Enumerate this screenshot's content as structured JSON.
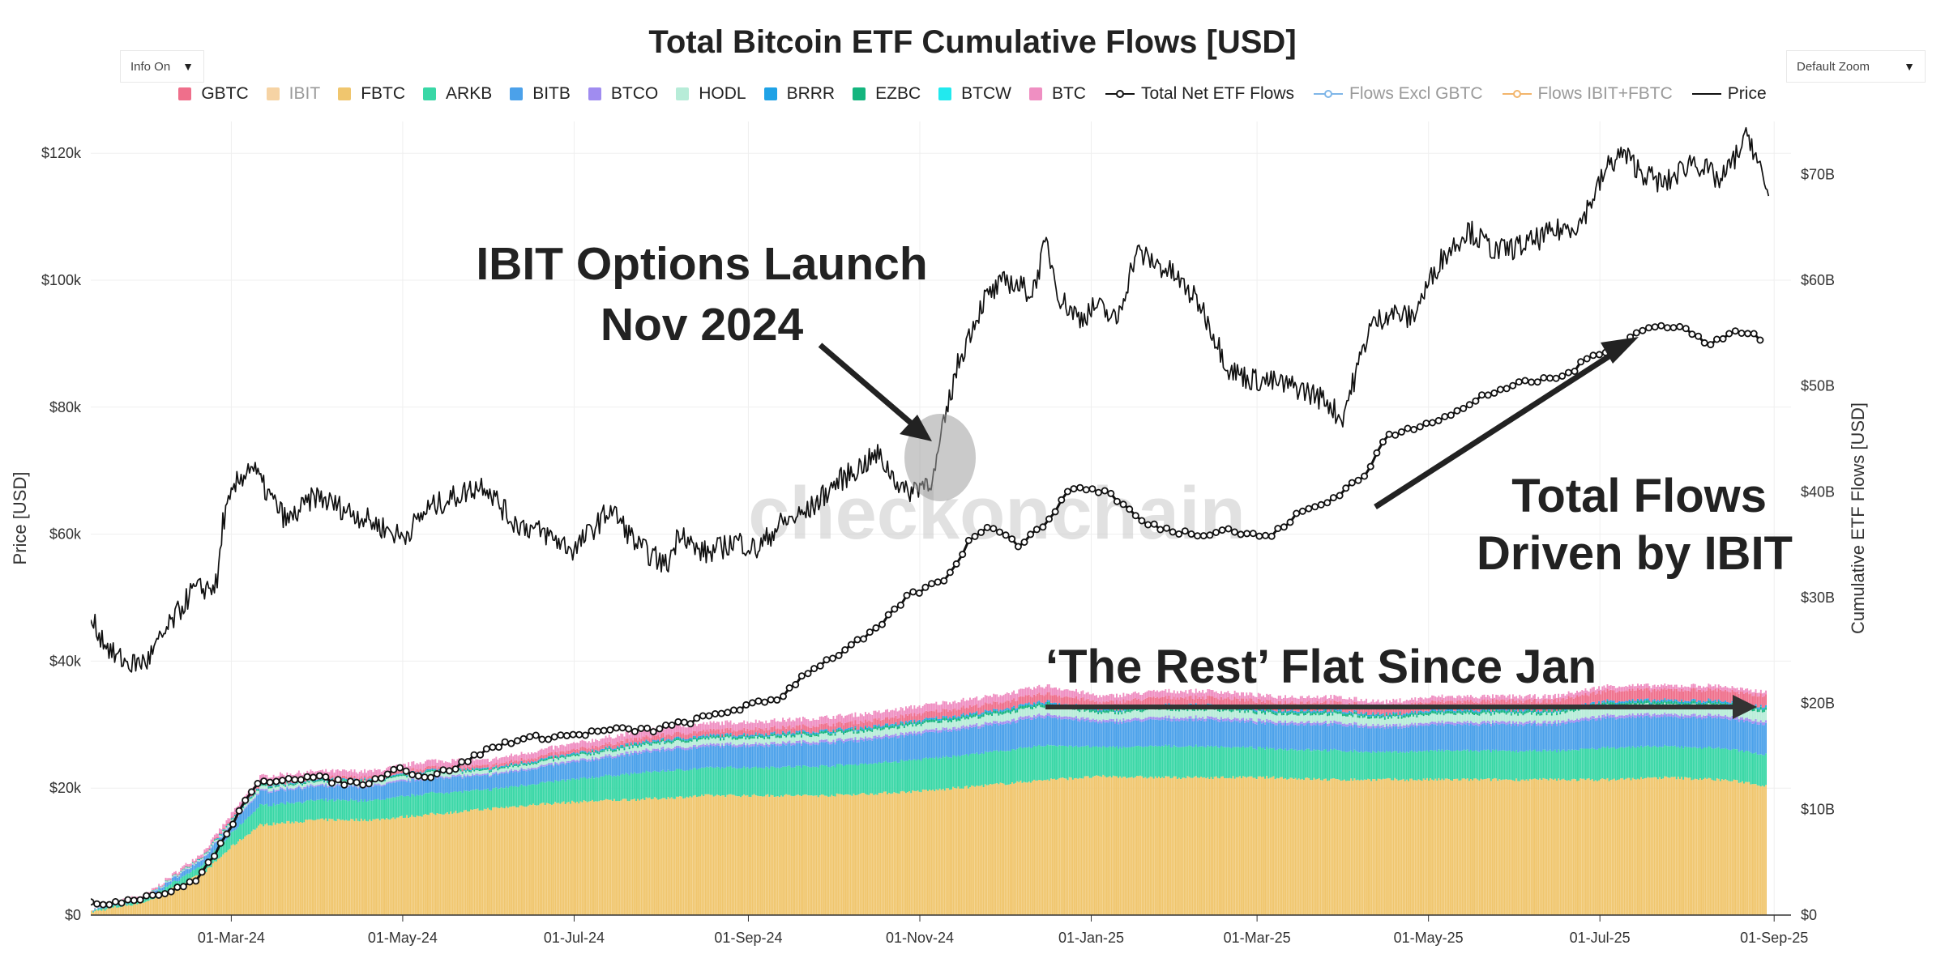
{
  "header": {
    "title": "Total Bitcoin ETF Cumulative Flows [USD]",
    "info_toggle": "Info On",
    "zoom_select": "Default Zoom"
  },
  "legend": [
    {
      "label": "GBTC",
      "color": "#ef6f8b",
      "kind": "swatch",
      "muted": false
    },
    {
      "label": "IBIT",
      "color": "#f6d3a4",
      "kind": "swatch",
      "muted": true
    },
    {
      "label": "FBTC",
      "color": "#f0c66e",
      "kind": "swatch",
      "muted": false
    },
    {
      "label": "ARKB",
      "color": "#39d7a6",
      "kind": "swatch",
      "muted": false
    },
    {
      "label": "BITB",
      "color": "#4ba1ea",
      "kind": "swatch",
      "muted": false
    },
    {
      "label": "BTCO",
      "color": "#a08cf0",
      "kind": "swatch",
      "muted": false
    },
    {
      "label": "HODL",
      "color": "#b7ecd8",
      "kind": "swatch",
      "muted": false
    },
    {
      "label": "BRRR",
      "color": "#1fa2e6",
      "kind": "swatch",
      "muted": false
    },
    {
      "label": "EZBC",
      "color": "#14b57e",
      "kind": "swatch",
      "muted": false
    },
    {
      "label": "BTCW",
      "color": "#22e9ee",
      "kind": "swatch",
      "muted": false
    },
    {
      "label": "BTC",
      "color": "#ef8fc2",
      "kind": "swatch",
      "muted": false
    },
    {
      "label": "Total Net ETF Flows",
      "color": "#111111",
      "kind": "markerline",
      "muted": false
    },
    {
      "label": "Flows Excl GBTC",
      "color": "#7fb6e8",
      "kind": "markerline",
      "muted": true
    },
    {
      "label": "Flows IBIT+FBTC",
      "color": "#f2b56b",
      "kind": "markerline",
      "muted": true
    },
    {
      "label": "Price",
      "color": "#111111",
      "kind": "line",
      "muted": false
    }
  ],
  "annotations": {
    "ibit_options_line1": "IBIT Options Launch",
    "ibit_options_line2": "Nov 2024",
    "total_flows_line1": "Total Flows",
    "total_flows_line2": "Driven by IBIT",
    "the_rest": "‘The Rest’ Flat Since Jan",
    "watermark": "checkonchain"
  },
  "chart_data": {
    "type": "line",
    "title": "Total Bitcoin ETF Cumulative Flows [USD]",
    "ylabel_left": "Price [USD]",
    "ylabel_right": "Cumulative ETF Flows [USD]",
    "ylim_left": [
      0,
      125000
    ],
    "ylim_right": [
      0,
      75
    ],
    "y_left_ticks": [
      "$0",
      "$20k",
      "$40k",
      "$60k",
      "$80k",
      "$100k",
      "$120k"
    ],
    "y_left_values": [
      0,
      20000,
      40000,
      60000,
      80000,
      100000,
      120000
    ],
    "y_right_ticks": [
      "$0",
      "$10B",
      "$20B",
      "$30B",
      "$40B",
      "$50B",
      "$60B",
      "$70B"
    ],
    "y_right_values": [
      0,
      10,
      20,
      30,
      40,
      50,
      60,
      70
    ],
    "x_ticks": [
      "01-Mar-24",
      "01-May-24",
      "01-Jul-24",
      "01-Sep-24",
      "01-Nov-24",
      "01-Jan-25",
      "01-Mar-25",
      "01-May-25",
      "01-Jul-25",
      "01-Sep-25"
    ],
    "x_tick_days": [
      50,
      111,
      172,
      234,
      295,
      356,
      415,
      476,
      537,
      599
    ],
    "x_range_days": [
      0,
      605
    ],
    "series": [
      {
        "name": "Price",
        "axis": "left",
        "unit": "USD",
        "x": [
          0,
          8,
          14,
          20,
          28,
          36,
          45,
          47,
          52,
          57,
          62,
          70,
          80,
          95,
          111,
          120,
          130,
          140,
          150,
          162,
          172,
          178,
          185,
          195,
          205,
          210,
          215,
          220,
          230,
          237,
          245,
          255,
          265,
          280,
          290,
          300,
          303,
          308,
          313,
          318,
          326,
          335,
          340,
          345,
          352,
          358,
          365,
          372,
          385,
          395,
          405,
          412,
          420,
          430,
          440,
          445,
          450,
          455,
          462,
          470,
          480,
          490,
          500,
          510,
          520,
          530,
          540,
          545,
          552,
          560,
          570,
          580,
          590,
          597
        ],
        "y": [
          46500,
          41000,
          39500,
          40000,
          45500,
          51000,
          52000,
          62000,
          68000,
          71000,
          67000,
          62000,
          66000,
          63000,
          59500,
          64000,
          66000,
          68000,
          62000,
          60000,
          57500,
          60500,
          64000,
          58000,
          55000,
          61000,
          57500,
          57000,
          59000,
          57500,
          61500,
          63500,
          68000,
          72500,
          66500,
          69000,
          76000,
          86000,
          92000,
          97000,
          100000,
          98000,
          106000,
          97000,
          94000,
          96000,
          93500,
          104500,
          101000,
          96000,
          86000,
          84500,
          84000,
          83000,
          81000,
          78000,
          85000,
          92500,
          95000,
          94000,
          103000,
          108000,
          104500,
          105500,
          107500,
          109000,
          118000,
          120000,
          117000,
          115000,
          119000,
          115500,
          123000,
          113000
        ]
      },
      {
        "name": "Total Net ETF Flows",
        "axis": "right",
        "unit": "B USD",
        "x": [
          0,
          10,
          20,
          30,
          38,
          45,
          52,
          60,
          70,
          80,
          90,
          100,
          108,
          120,
          130,
          140,
          150,
          160,
          172,
          185,
          200,
          215,
          230,
          245,
          255,
          265,
          280,
          290,
          298,
          305,
          313,
          320,
          330,
          338,
          345,
          350,
          356,
          362,
          375,
          385,
          395,
          405,
          410,
          420,
          430,
          440,
          450,
          455,
          460,
          470,
          480,
          490,
          495,
          505,
          515,
          525,
          535,
          545,
          550,
          555,
          565,
          575,
          585,
          590,
          595
        ],
        "y": [
          1,
          1.3,
          1.8,
          2.3,
          3.5,
          6,
          9.5,
          12.5,
          13,
          13,
          12.5,
          12.5,
          14,
          13,
          14,
          15.5,
          16.5,
          16.8,
          17,
          17.5,
          17.5,
          18.4,
          19.5,
          20.5,
          23,
          24.5,
          27,
          30,
          31,
          32,
          35.5,
          37,
          35,
          36.5,
          39,
          40.5,
          40.2,
          40,
          37,
          36.3,
          36,
          36.5,
          36,
          35.8,
          38,
          39,
          41,
          42,
          45,
          46,
          47,
          48,
          49,
          50,
          50.5,
          51,
          53,
          54,
          55,
          55.5,
          55.8,
          54,
          55,
          55.2,
          54
        ]
      },
      {
        "name": "Stacked ETF Totals",
        "axis": "right",
        "unit": "B USD",
        "x": [
          0,
          20,
          40,
          50,
          60,
          80,
          100,
          120,
          140,
          160,
          180,
          200,
          220,
          240,
          260,
          280,
          300,
          320,
          340,
          360,
          380,
          400,
          420,
          440,
          460,
          480,
          500,
          520,
          540,
          560,
          580,
          590,
          596
        ],
        "y": [
          0.5,
          2,
          6,
          9.5,
          13,
          13.5,
          13.5,
          14.5,
          14.5,
          15.5,
          16.5,
          17.5,
          18,
          18.2,
          18.5,
          19,
          19.8,
          20.5,
          21.5,
          20.5,
          21,
          21,
          20.5,
          20.5,
          20,
          20.5,
          20.5,
          20.5,
          21.5,
          21.5,
          21.5,
          21,
          21
        ]
      },
      {
        "name": "IBIT Excl (The Rest, top of FBTC)",
        "axis": "right",
        "unit": "B USD",
        "x": [
          0,
          20,
          40,
          50,
          60,
          80,
          100,
          120,
          140,
          160,
          180,
          200,
          220,
          240,
          260,
          280,
          300,
          320,
          340,
          360,
          380,
          400,
          420,
          440,
          460,
          480,
          500,
          520,
          540,
          560,
          580,
          590,
          596
        ],
        "y": [
          0.3,
          1.3,
          4,
          6.5,
          8.5,
          9,
          9,
          9.5,
          10,
          10.5,
          10.8,
          11,
          11.3,
          11.3,
          11.3,
          11.5,
          11.8,
          12.3,
          12.8,
          13.1,
          13,
          13,
          13,
          12.8,
          12.8,
          12.8,
          12.8,
          12.8,
          12.8,
          13,
          12.8,
          12.5,
          12.2
        ]
      }
    ]
  }
}
